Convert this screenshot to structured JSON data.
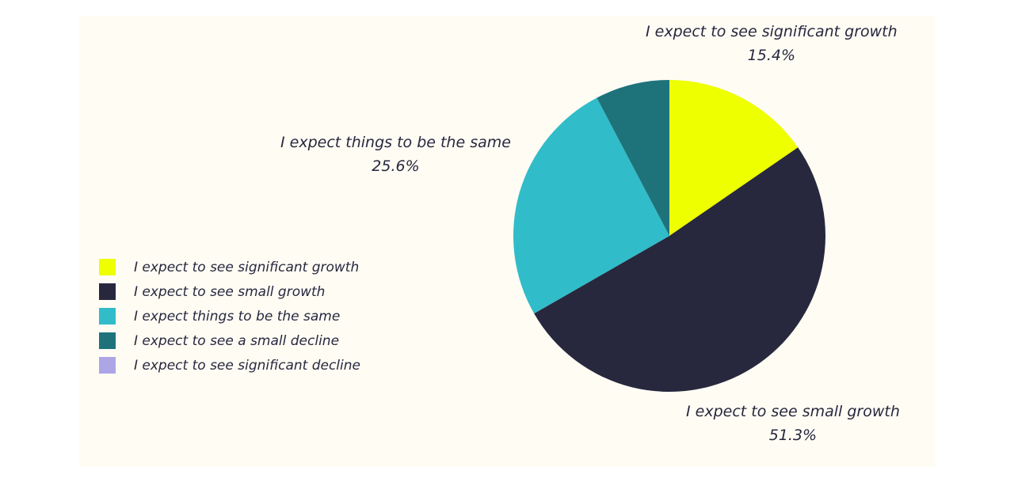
{
  "chart_data": {
    "type": "pie",
    "title": "",
    "legend_position": "left",
    "slices": [
      {
        "name": "I expect to see significant growth",
        "value": 15.4,
        "pct_label": "15.4%",
        "color": "#eeff00"
      },
      {
        "name": "I expect to see small growth",
        "value": 51.3,
        "pct_label": "51.3%",
        "color": "#27283e"
      },
      {
        "name": "I expect things to be the same",
        "value": 25.6,
        "pct_label": "25.6%",
        "color": "#31bcc9"
      },
      {
        "name": "I expect to see a small decline",
        "value": 7.7,
        "pct_label": "",
        "color": "#1e737b"
      },
      {
        "name": "I expect to see significant decline",
        "value": 0,
        "pct_label": "",
        "color": "#ada6e6"
      }
    ]
  }
}
